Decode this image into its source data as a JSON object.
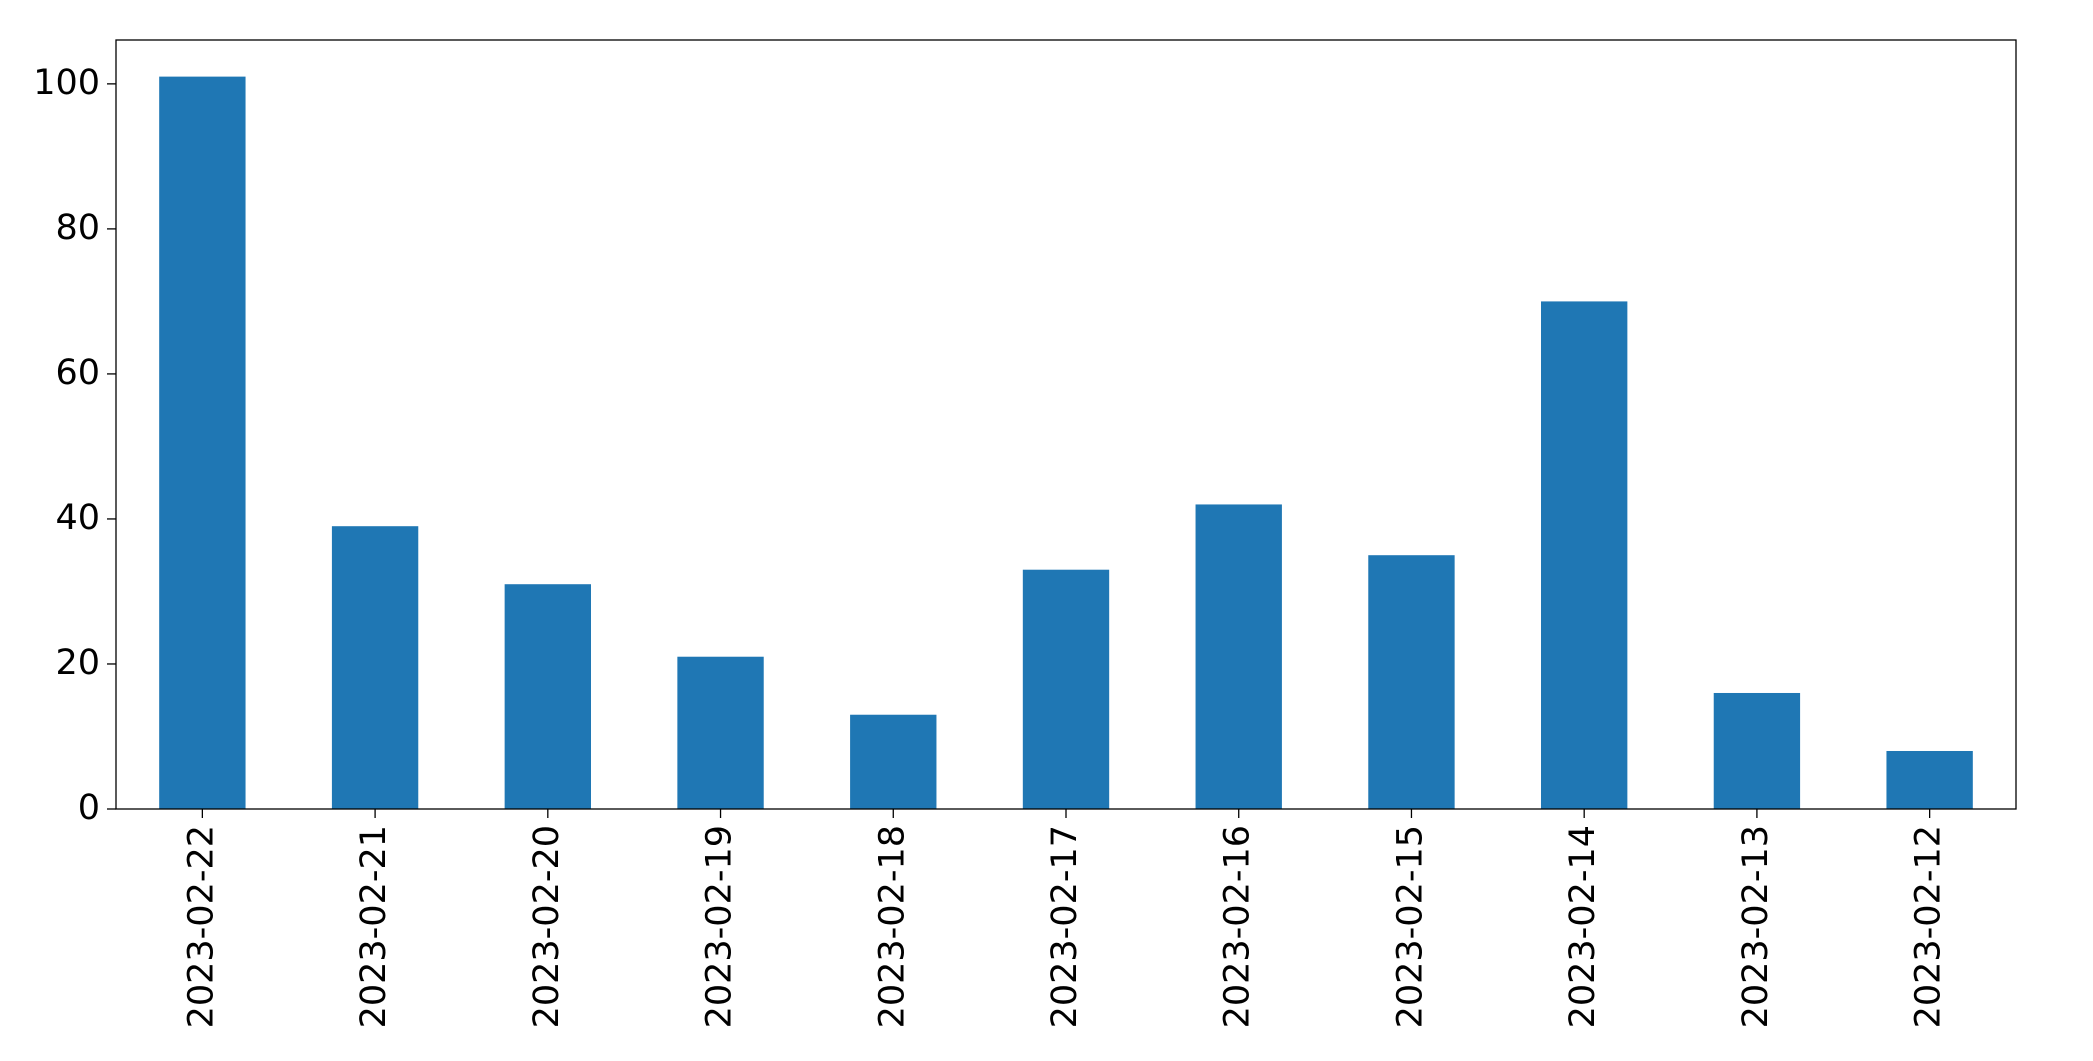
{
  "chart_data": {
    "type": "bar",
    "categories": [
      "2023-02-22",
      "2023-02-21",
      "2023-02-20",
      "2023-02-19",
      "2023-02-18",
      "2023-02-17",
      "2023-02-16",
      "2023-02-15",
      "2023-02-14",
      "2023-02-13",
      "2023-02-12"
    ],
    "values": [
      101,
      39,
      31,
      21,
      13,
      33,
      42,
      35,
      70,
      16,
      8
    ],
    "color": "#1f77b4",
    "ylim": [
      0,
      106.05
    ],
    "yticks": [
      0,
      20,
      40,
      60,
      80,
      100
    ],
    "grid": false
  }
}
